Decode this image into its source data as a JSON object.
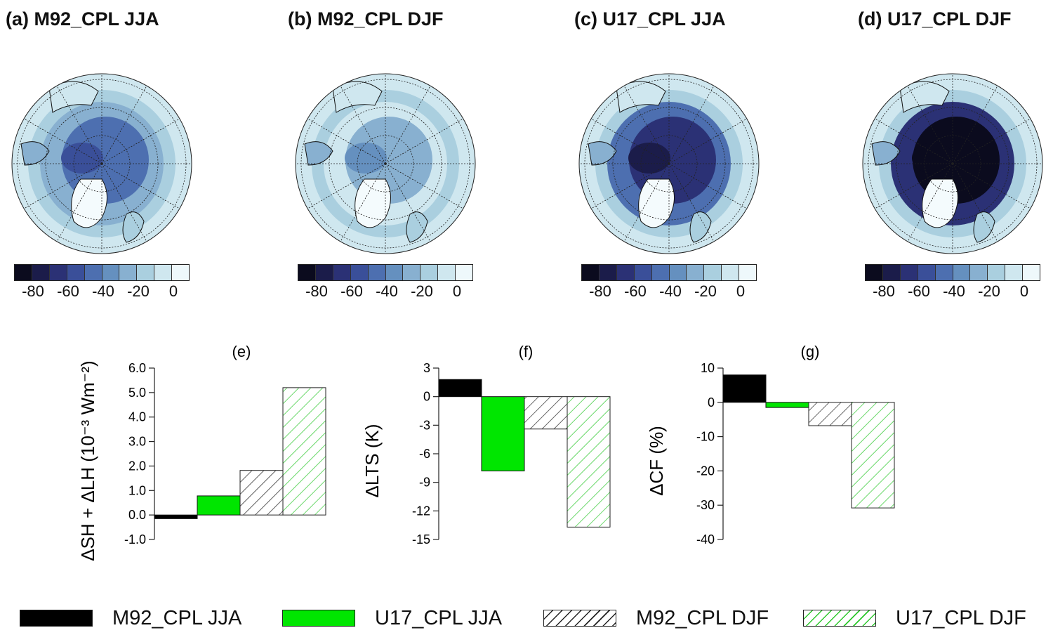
{
  "panel_titles": [
    "(a) M92_CPL JJA",
    "(b) M92_CPL DJF",
    "(c) U17_CPL JJA",
    "(d) U17_CPL DJF"
  ],
  "colorbar": {
    "colors": [
      "#0b0b1e",
      "#1b1c4a",
      "#2b3175",
      "#3a4f99",
      "#4d6fb0",
      "#6590bf",
      "#88b0d0",
      "#aacfdf",
      "#cfe7ef",
      "#eef8fb"
    ],
    "ticks": [
      "-80",
      "-60",
      "-40",
      "-20",
      "0"
    ]
  },
  "legend": {
    "items": [
      "M92_CPL JJA",
      "U17_CPL JJA",
      "M92_CPL DJF",
      "U17_CPL DJF"
    ]
  },
  "series_styles": {
    "M92_CPL JJA": {
      "fill": "#000000",
      "hatch": false
    },
    "U17_CPL JJA": {
      "fill": "#00e600",
      "hatch": false
    },
    "M92_CPL DJF": {
      "fill": "#222222",
      "hatch": true
    },
    "U17_CPL DJF": {
      "fill": "#2ec82e",
      "hatch": true
    }
  },
  "chart_data": [
    {
      "type": "bar",
      "title": "(e)",
      "ylabel": "ΔSH + ΔLH (10⁻³ Wm⁻²)",
      "categories": [
        "M92_CPL JJA",
        "U17_CPL JJA",
        "M92_CPL DJF",
        "U17_CPL DJF"
      ],
      "values": [
        -0.15,
        0.78,
        1.82,
        5.2
      ],
      "ylim": [
        -1.0,
        6.0
      ],
      "yticks": [
        "6.0",
        "5.0",
        "4.0",
        "3.0",
        "2.0",
        "1.0",
        "0.0",
        "-1.0"
      ],
      "ytick_values": [
        6,
        5,
        4,
        3,
        2,
        1,
        0,
        -1
      ],
      "grid": false
    },
    {
      "type": "bar",
      "title": "(f)",
      "ylabel": "ΔLTS (K)",
      "categories": [
        "M92_CPL JJA",
        "U17_CPL JJA",
        "M92_CPL DJF",
        "U17_CPL DJF"
      ],
      "values": [
        1.8,
        -7.8,
        -3.4,
        -13.7
      ],
      "ylim": [
        -15,
        3
      ],
      "yticks": [
        "3",
        "0",
        "-3",
        "-6",
        "-9",
        "-12",
        "-15"
      ],
      "ytick_values": [
        3,
        0,
        -3,
        -6,
        -9,
        -12,
        -15
      ],
      "grid": false
    },
    {
      "type": "bar",
      "title": "(g)",
      "ylabel": "ΔCF (%)",
      "categories": [
        "M92_CPL JJA",
        "U17_CPL JJA",
        "M92_CPL DJF",
        "U17_CPL DJF"
      ],
      "values": [
        8.0,
        -1.5,
        -6.8,
        -30.8
      ],
      "ylim": [
        -40,
        10
      ],
      "yticks": [
        "10",
        "0",
        "-10",
        "-20",
        "-30",
        "-40"
      ],
      "ytick_values": [
        10,
        0,
        -10,
        -20,
        -30,
        -40
      ],
      "grid": false
    }
  ]
}
